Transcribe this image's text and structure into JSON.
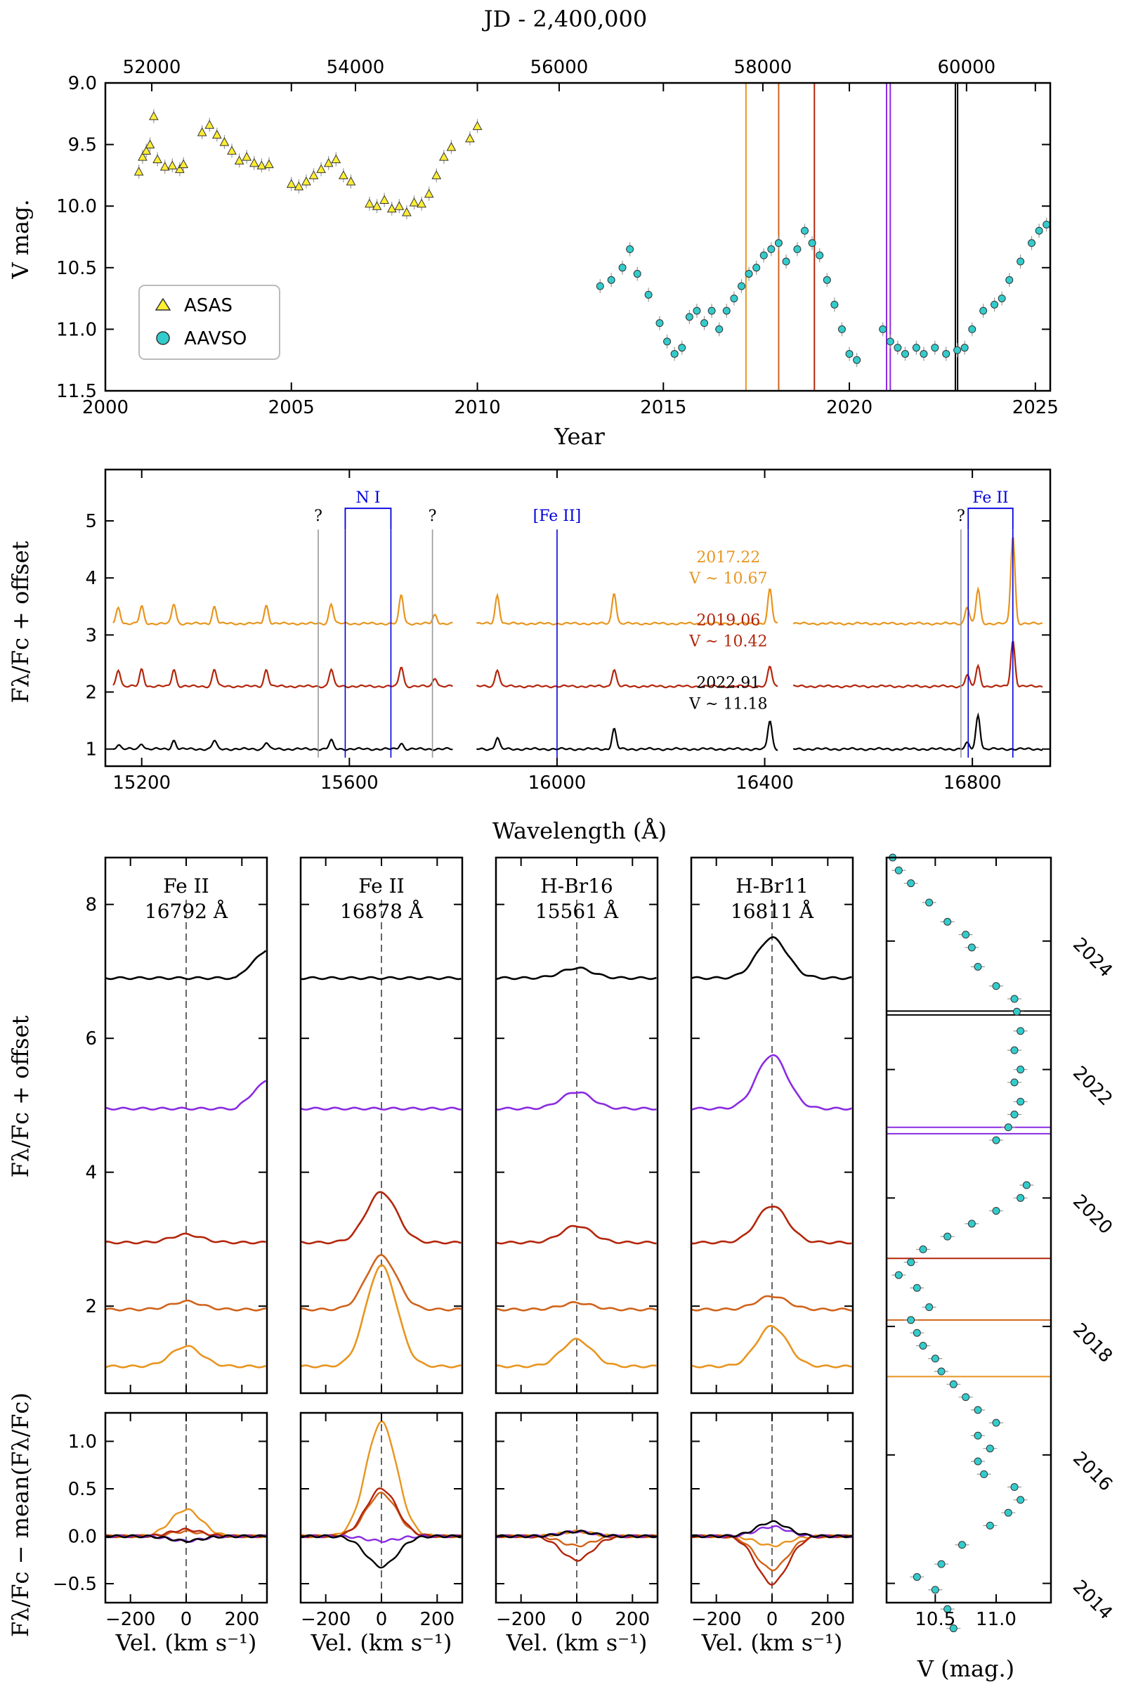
{
  "chart_data": [
    {
      "type": "scatter",
      "panel": "light_curve",
      "top_axis_label": "JD - 2,400,000",
      "top_ticks": [
        "52000",
        "54000",
        "56000",
        "58000",
        "60000"
      ],
      "xlabel": "Year",
      "x_ticks": [
        "2000",
        "2005",
        "2010",
        "2015",
        "2020",
        "2025"
      ],
      "ylabel": "V mag.",
      "y_ticks": [
        "9.0",
        "9.5",
        "10.0",
        "10.5",
        "11.0",
        "11.5"
      ],
      "xlim": [
        2000,
        2025.4
      ],
      "ylim": [
        11.5,
        9.0
      ],
      "legend": [
        "ASAS",
        "AAVSO"
      ],
      "legend_position": "bottom-left",
      "epoch_lines": [
        {
          "year": 2017.22,
          "color": "#e8951f"
        },
        {
          "year": 2018.1,
          "color": "#d0641c"
        },
        {
          "year": 2019.06,
          "color": "#b3260c"
        },
        {
          "year": 2021.0,
          "color": "#8a2be2"
        },
        {
          "year": 2021.1,
          "color": "#8a2be2"
        },
        {
          "year": 2022.85,
          "color": "#000000"
        },
        {
          "year": 2022.91,
          "color": "#000000"
        }
      ],
      "series": [
        {
          "name": "ASAS",
          "color": "#ffee33",
          "points": [
            [
              2000.9,
              9.72
            ],
            [
              2001.0,
              9.6
            ],
            [
              2001.1,
              9.55
            ],
            [
              2001.2,
              9.5
            ],
            [
              2001.3,
              9.27
            ],
            [
              2001.4,
              9.62
            ],
            [
              2001.6,
              9.68
            ],
            [
              2001.8,
              9.67
            ],
            [
              2002.0,
              9.7
            ],
            [
              2002.1,
              9.66
            ],
            [
              2002.6,
              9.4
            ],
            [
              2002.8,
              9.34
            ],
            [
              2003.0,
              9.42
            ],
            [
              2003.2,
              9.48
            ],
            [
              2003.4,
              9.55
            ],
            [
              2003.6,
              9.63
            ],
            [
              2003.8,
              9.6
            ],
            [
              2004.0,
              9.65
            ],
            [
              2004.2,
              9.67
            ],
            [
              2004.4,
              9.66
            ],
            [
              2005.0,
              9.82
            ],
            [
              2005.2,
              9.84
            ],
            [
              2005.4,
              9.8
            ],
            [
              2005.6,
              9.75
            ],
            [
              2005.8,
              9.7
            ],
            [
              2006.0,
              9.65
            ],
            [
              2006.2,
              9.62
            ],
            [
              2006.4,
              9.75
            ],
            [
              2006.6,
              9.8
            ],
            [
              2007.1,
              9.98
            ],
            [
              2007.3,
              10.0
            ],
            [
              2007.5,
              9.95
            ],
            [
              2007.7,
              10.02
            ],
            [
              2007.9,
              10.0
            ],
            [
              2008.1,
              10.05
            ],
            [
              2008.3,
              9.97
            ],
            [
              2008.5,
              9.98
            ],
            [
              2008.7,
              9.9
            ],
            [
              2008.9,
              9.75
            ],
            [
              2009.1,
              9.6
            ],
            [
              2009.3,
              9.52
            ],
            [
              2009.8,
              9.45
            ],
            [
              2010.0,
              9.35
            ]
          ]
        },
        {
          "name": "AAVSO",
          "color": "#33cccc",
          "points": [
            [
              2013.3,
              10.65
            ],
            [
              2013.6,
              10.6
            ],
            [
              2013.9,
              10.5
            ],
            [
              2014.1,
              10.35
            ],
            [
              2014.3,
              10.55
            ],
            [
              2014.6,
              10.72
            ],
            [
              2014.9,
              10.95
            ],
            [
              2015.1,
              11.1
            ],
            [
              2015.3,
              11.2
            ],
            [
              2015.5,
              11.15
            ],
            [
              2015.7,
              10.9
            ],
            [
              2015.9,
              10.85
            ],
            [
              2016.1,
              10.95
            ],
            [
              2016.3,
              10.85
            ],
            [
              2016.5,
              11.0
            ],
            [
              2016.7,
              10.85
            ],
            [
              2016.9,
              10.75
            ],
            [
              2017.1,
              10.65
            ],
            [
              2017.3,
              10.55
            ],
            [
              2017.5,
              10.5
            ],
            [
              2017.7,
              10.4
            ],
            [
              2017.9,
              10.35
            ],
            [
              2018.1,
              10.3
            ],
            [
              2018.3,
              10.45
            ],
            [
              2018.6,
              10.35
            ],
            [
              2018.8,
              10.2
            ],
            [
              2019.0,
              10.3
            ],
            [
              2019.2,
              10.4
            ],
            [
              2019.4,
              10.6
            ],
            [
              2019.6,
              10.8
            ],
            [
              2019.8,
              11.0
            ],
            [
              2020.0,
              11.2
            ],
            [
              2020.2,
              11.25
            ],
            [
              2020.9,
              11.0
            ],
            [
              2021.1,
              11.1
            ],
            [
              2021.3,
              11.15
            ],
            [
              2021.5,
              11.2
            ],
            [
              2021.8,
              11.15
            ],
            [
              2022.0,
              11.2
            ],
            [
              2022.3,
              11.15
            ],
            [
              2022.6,
              11.2
            ],
            [
              2022.9,
              11.17
            ],
            [
              2023.1,
              11.15
            ],
            [
              2023.3,
              11.0
            ],
            [
              2023.6,
              10.85
            ],
            [
              2023.9,
              10.8
            ],
            [
              2024.1,
              10.75
            ],
            [
              2024.3,
              10.6
            ],
            [
              2024.6,
              10.45
            ],
            [
              2024.9,
              10.3
            ],
            [
              2025.1,
              10.2
            ],
            [
              2025.3,
              10.15
            ]
          ]
        }
      ]
    },
    {
      "type": "line",
      "panel": "spectra",
      "xlabel": "Wavelength (Å)",
      "x_ticks": [
        "15200",
        "15600",
        "16000",
        "16400",
        "16800"
      ],
      "ylabel": "Fλ/Fc + offset",
      "y_ticks": [
        "1",
        "2",
        "3",
        "4",
        "5"
      ],
      "xlim": [
        15130,
        16950
      ],
      "ylim": [
        0.7,
        5.9
      ],
      "gaps": [
        [
          15800,
          15845
        ],
        [
          16425,
          16455
        ]
      ],
      "line_ids": [
        {
          "label": "?",
          "wl": [
            15540
          ],
          "color": "#000000"
        },
        {
          "label": "N I",
          "wl": [
            15592,
            15680
          ],
          "color": "#0000dd"
        },
        {
          "label": "?",
          "wl": [
            15760
          ],
          "color": "#000000"
        },
        {
          "label": "[Fe II]",
          "wl": [
            16000
          ],
          "color": "#0000dd"
        },
        {
          "label": "?",
          "wl": [
            16778
          ],
          "color": "#000000"
        },
        {
          "label": "Fe II",
          "wl": [
            16792,
            16878
          ],
          "color": "#0000dd"
        }
      ],
      "series": [
        {
          "name": "2017.22",
          "vlabel": "V ~ 10.67",
          "color": "#e8951f",
          "offset": 3.2,
          "lines": [
            [
              15155,
              0.28
            ],
            [
              15200,
              0.3
            ],
            [
              15262,
              0.35
            ],
            [
              15340,
              0.3
            ],
            [
              15440,
              0.32
            ],
            [
              15565,
              0.35
            ],
            [
              15700,
              0.5
            ],
            [
              15765,
              0.15
            ],
            [
              15885,
              0.5
            ],
            [
              16110,
              0.55
            ],
            [
              16410,
              0.6
            ],
            [
              16790,
              0.3
            ],
            [
              16811,
              0.6
            ],
            [
              16878,
              1.55
            ]
          ]
        },
        {
          "name": "2019.06",
          "vlabel": "V ~ 10.42",
          "color": "#b3260c",
          "offset": 2.1,
          "lines": [
            [
              15155,
              0.3
            ],
            [
              15200,
              0.3
            ],
            [
              15262,
              0.3
            ],
            [
              15340,
              0.3
            ],
            [
              15440,
              0.3
            ],
            [
              15565,
              0.3
            ],
            [
              15700,
              0.35
            ],
            [
              15765,
              0.15
            ],
            [
              15885,
              0.3
            ],
            [
              16110,
              0.3
            ],
            [
              16410,
              0.35
            ],
            [
              16790,
              0.2
            ],
            [
              16811,
              0.35
            ],
            [
              16878,
              0.8
            ]
          ]
        },
        {
          "name": "2022.91",
          "vlabel": "V ~ 11.18",
          "color": "#000000",
          "offset": 1.0,
          "lines": [
            [
              15155,
              0.08
            ],
            [
              15200,
              0.1
            ],
            [
              15262,
              0.15
            ],
            [
              15340,
              0.15
            ],
            [
              15440,
              0.12
            ],
            [
              15565,
              0.15
            ],
            [
              15700,
              0.1
            ],
            [
              15885,
              0.2
            ],
            [
              16110,
              0.35
            ],
            [
              16410,
              0.5
            ],
            [
              16790,
              0.1
            ],
            [
              16811,
              0.6
            ]
          ]
        }
      ]
    },
    {
      "type": "line",
      "panel": "line_profiles",
      "ylabel": "Fλ/Fc + offset",
      "y_ticks": [
        "2",
        "4",
        "6",
        "8"
      ],
      "ylim": [
        0.7,
        8.7
      ],
      "xlabel": "Vel. (km s⁻¹)",
      "x_ticks": [
        "−200",
        "0",
        "200"
      ],
      "xlim": [
        -290,
        290
      ],
      "lines": [
        {
          "title": "Fe II",
          "wave": "16792 Å"
        },
        {
          "title": "Fe II",
          "wave": "16878 Å"
        },
        {
          "title": "H-Br16",
          "wave": "15561 Å"
        },
        {
          "title": "H-Br11",
          "wave": "16811 Å"
        }
      ],
      "epochs": [
        {
          "name": "2017.22",
          "color": "#e8951f",
          "offset": 1.1,
          "amps": [
            0.3,
            1.5,
            0.4,
            0.6
          ]
        },
        {
          "name": "2018.1",
          "color": "#d0641c",
          "offset": 1.95,
          "amps": [
            0.12,
            0.8,
            0.1,
            0.2
          ]
        },
        {
          "name": "2019.06",
          "color": "#b3260c",
          "offset": 2.95,
          "amps": [
            0.12,
            0.75,
            0.25,
            0.55
          ]
        },
        {
          "name": "2021.0",
          "color": "#8a2be2",
          "offset": 4.95,
          "amps": [
            0.0,
            0.0,
            0.25,
            0.8
          ]
        },
        {
          "name": "2022.9",
          "color": "#000000",
          "offset": 6.9,
          "amps": [
            0.0,
            0.0,
            0.15,
            0.6
          ]
        }
      ]
    },
    {
      "type": "line",
      "panel": "residuals",
      "ylabel": "Fλ/Fc − mean(Fλ/Fc)",
      "y_ticks": [
        "−0.5",
        "0.0",
        "0.5",
        "1.0"
      ],
      "ylim": [
        -0.7,
        1.3
      ],
      "xlabel": "Vel. (km s⁻¹)",
      "x_ticks": [
        "−200",
        "0",
        "200"
      ],
      "xlim": [
        -290,
        290
      ],
      "amps": {
        "2017.22": [
          0.28,
          1.2,
          0.05,
          -0.1
        ],
        "2018.1": [
          0.05,
          0.45,
          -0.1,
          -0.35
        ],
        "2019.06": [
          0.07,
          0.5,
          -0.25,
          -0.5
        ],
        "2021.0": [
          -0.05,
          -0.05,
          0.05,
          0.1
        ],
        "2022.9": [
          -0.05,
          -0.32,
          0.05,
          0.15
        ]
      }
    },
    {
      "type": "scatter",
      "panel": "side_light_curve",
      "xlabel": "V (mag.)",
      "x_ticks": [
        "10.5",
        "11.0"
      ],
      "xlim": [
        10.1,
        11.45
      ],
      "ylim": [
        2013.7,
        2025.3
      ],
      "y_ticks": [
        "2014",
        "2016",
        "2018",
        "2020",
        "2022",
        "2024"
      ]
    }
  ]
}
